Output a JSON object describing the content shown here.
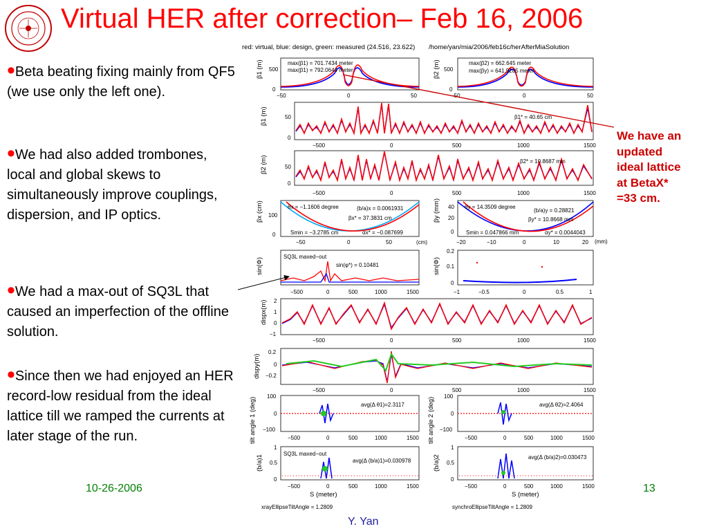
{
  "slide": {
    "title": "Virtual HER after correction– Feb 16, 2006",
    "date": "10-26-2006",
    "page": "13",
    "author": "Y. Yan"
  },
  "bullets": [
    "Beta beating fixing mainly from QF5 (we use only the left one).",
    "We had also added trombones, local and global skews to simultaneously improve couplings, dispersion, and IP optics.",
    "We had a max-out of SQ3L that caused an imperfection of the offline solution.",
    "Since then we had enjoyed an HER record-low residual from the ideal lattice till we ramped the currents at later stage of the run."
  ],
  "note": "We have an updated ideal lattice at BetaX* =33 cm.",
  "colors": {
    "title": "#ff0000",
    "bullet_dot": "#ff0000",
    "footer": "#008000",
    "note": "#cc0000",
    "author": "#2020a0"
  },
  "figure": {
    "caption": "red: virtual, blue: design, green: measured  (24.516, 23.622)",
    "path": "/home/yan/mia/2006/feb16c/herAfterMiaSolution",
    "bottom_left": "xrayEllipseTiltAngle = 1.2809",
    "bottom_right": "synchroEllipseTiltAngle = 1.2809",
    "annotations": {
      "maxb1a": "max(β1) = 701.7434 meter",
      "maxb1b": "max(β1) = 792.0644 meter",
      "maxb2a": "max(β2) = 662.645 meter",
      "maxb2b": "max(βy) = 641.9205 meter",
      "beta1star": "β1* = 40.65 cm",
      "beta2star": "β2* = 10.8687 mm",
      "thetax": "θx = −1.1606 degree",
      "bax": "(b/a)x = 0.0061931",
      "betaxstar": "βx* = 37.3831 cm",
      "sminx": "Smin = −3.2785 cm",
      "alphax": "αx* = −0.087699",
      "thetay": "θy = 14.3509 degree",
      "bay": "(b/a)y = 0.28821",
      "betaystar": "βy* = 10.8668 mm",
      "sminy": "Smin = 0.047866 mm",
      "alphay": "αy* = 0.0044043",
      "sq3l1": "SQ3L maxed−out",
      "sinphi": "sin(φ*) = 0.10481",
      "avgt1": "avg(Δ θ1)=2.3117",
      "avgt2": "avg(Δ θ2)=2.4064",
      "sq3l2": "SQ3L maxed−out",
      "avgba1": "avg(Δ (b/a)1)=0.030978",
      "avgba2": "avg(Δ (b/a)2)=0.030473"
    },
    "ylabels": {
      "b1": "β1 (m)",
      "b2": "β2 (m)",
      "bx": "βx (cm)",
      "by": "βy (mm)",
      "sin1": "sin(Φ)",
      "sin2": "sin(Φ)",
      "dispx": "dispx(m)",
      "dispy": "dispy(m)",
      "tilt1": "tilt angle 1 (deg)",
      "tilt2": "tilt angle 2 (deg)",
      "ba1": "(b/a)1",
      "ba2": "(b/a)2"
    },
    "units": {
      "cm": "(cm)",
      "mm": "(mm)",
      "sx1": "S (meter)",
      "sx2": "S (meter)"
    }
  }
}
